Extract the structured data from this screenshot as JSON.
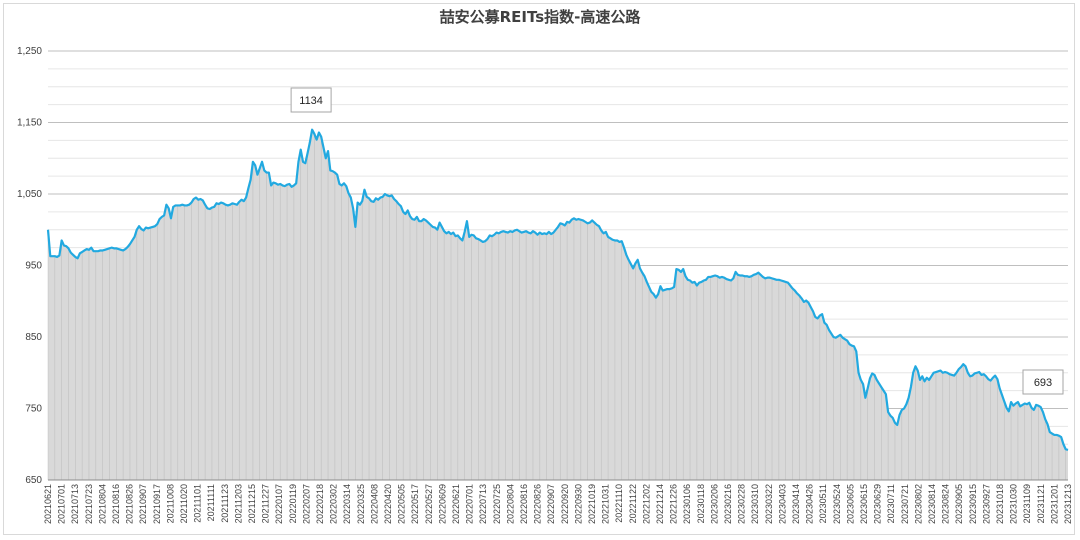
{
  "chart_data": {
    "type": "area",
    "title": "喆安公募REITs指数-高速公路",
    "xlabel": "",
    "ylabel": "",
    "ylim": [
      650,
      1250
    ],
    "yticks": [
      650,
      750,
      850,
      950,
      1050,
      1150,
      1250
    ],
    "ytick_labels": [
      "650",
      "750",
      "850",
      "950",
      "1,050",
      "1,150",
      "1,250"
    ],
    "xtick_labels": [
      "20210621",
      "20210701",
      "20210713",
      "20210723",
      "20210804",
      "20210816",
      "20210826",
      "20210907",
      "20210917",
      "20211008",
      "20211020",
      "20211101",
      "20211111",
      "20211123",
      "20211203",
      "20211215",
      "20211227",
      "20220107",
      "20220119",
      "20220207",
      "20220218",
      "20220302",
      "20220314",
      "20220325",
      "20220408",
      "20220420",
      "20220505",
      "20220517",
      "20220527",
      "20220609",
      "20220621",
      "20220701",
      "20220713",
      "20220725",
      "20220804",
      "20220816",
      "20220826",
      "20220907",
      "20220920",
      "20220930",
      "20221019",
      "20221031",
      "20221110",
      "20221122",
      "20221202",
      "20221214",
      "20221226",
      "20230106",
      "20230118",
      "20230206",
      "20230216",
      "20230228",
      "20230310",
      "20230322",
      "20230403",
      "20230414",
      "20230426",
      "20230511",
      "20230524",
      "20230605",
      "20230615",
      "20230629",
      "20230711",
      "20230721",
      "20230802",
      "20230814",
      "20230824",
      "20230905",
      "20230915",
      "20230927",
      "20231018",
      "20231030",
      "20231109",
      "20231121",
      "20231201",
      "20231213"
    ],
    "series": [
      {
        "values": [
          1000,
          963,
          963,
          963,
          962,
          964,
          985,
          978,
          977,
          974,
          968,
          965,
          962,
          960,
          967,
          969,
          971,
          973,
          972,
          975,
          970,
          970,
          970,
          971,
          971,
          972,
          973,
          974,
          975,
          974,
          974,
          973,
          972,
          971,
          973,
          976,
          980,
          985,
          990,
          1000,
          1005,
          1001,
          999,
          1003,
          1002,
          1003,
          1004,
          1005,
          1008,
          1015,
          1018,
          1020,
          1035,
          1030,
          1016,
          1032,
          1034,
          1034,
          1034,
          1035,
          1034,
          1034,
          1035,
          1038,
          1043,
          1045,
          1042,
          1043,
          1041,
          1035,
          1030,
          1029,
          1031,
          1032,
          1037,
          1036,
          1038,
          1037,
          1035,
          1034,
          1035,
          1037,
          1036,
          1035,
          1039,
          1042,
          1040,
          1045,
          1058,
          1070,
          1095,
          1090,
          1077,
          1086,
          1095,
          1083,
          1080,
          1080,
          1062,
          1066,
          1065,
          1063,
          1064,
          1062,
          1061,
          1063,
          1064,
          1060,
          1062,
          1065,
          1095,
          1112,
          1095,
          1093,
          1107,
          1122,
          1140,
          1134,
          1126,
          1136,
          1130,
          1115,
          1100,
          1110,
          1083,
          1082,
          1080,
          1077,
          1064,
          1062,
          1065,
          1061,
          1051,
          1045,
          1030,
          1004,
          1038,
          1035,
          1040,
          1056,
          1046,
          1044,
          1040,
          1039,
          1044,
          1042,
          1045,
          1046,
          1050,
          1048,
          1047,
          1048,
          1043,
          1040,
          1036,
          1033,
          1025,
          1022,
          1027,
          1019,
          1015,
          1014,
          1018,
          1012,
          1012,
          1015,
          1013,
          1010,
          1007,
          1004,
          1003,
          1000,
          1010,
          1004,
          998,
          995,
          997,
          994,
          996,
          991,
          992,
          988,
          985,
          997,
          1012,
          990,
          993,
          992,
          988,
          987,
          985,
          983,
          984,
          987,
          992,
          991,
          993,
          996,
          995,
          997,
          998,
          997,
          996,
          998,
          997,
          999,
          1000,
          998,
          996,
          997,
          998,
          996,
          995,
          998,
          996,
          993,
          996,
          994,
          995,
          994,
          997,
          994,
          996,
          1000,
          1004,
          1009,
          1008,
          1006,
          1011,
          1010,
          1014,
          1016,
          1014,
          1015,
          1014,
          1013,
          1011,
          1009,
          1010,
          1013,
          1010,
          1007,
          1005,
          999,
          995,
          997,
          990,
          988,
          986,
          985,
          985,
          983,
          984,
          975,
          965,
          958,
          952,
          946,
          953,
          958,
          946,
          940,
          935,
          927,
          920,
          913,
          910,
          905,
          910,
          921,
          915,
          916,
          917,
          917,
          918,
          920,
          945,
          944,
          941,
          945,
          935,
          930,
          929,
          926,
          927,
          922,
          926,
          927,
          929,
          930,
          934,
          934,
          935,
          936,
          935,
          933,
          934,
          933,
          931,
          930,
          929,
          932,
          941,
          937,
          936,
          936,
          935,
          935,
          934,
          935,
          937,
          938,
          940,
          937,
          934,
          932,
          933,
          933,
          932,
          931,
          930,
          930,
          929,
          928,
          927,
          926,
          922,
          918,
          915,
          911,
          908,
          904,
          899,
          901,
          898,
          892,
          886,
          878,
          876,
          880,
          882,
          870,
          867,
          860,
          855,
          850,
          849,
          851,
          853,
          849,
          847,
          845,
          840,
          838,
          837,
          830,
          800,
          790,
          784,
          765,
          778,
          792,
          799,
          797,
          790,
          785,
          780,
          775,
          770,
          745,
          740,
          737,
          730,
          727,
          741,
          748,
          750,
          756,
          765,
          780,
          800,
          809,
          803,
          790,
          795,
          788,
          793,
          790,
          795,
          800,
          801,
          802,
          803,
          800,
          801,
          800,
          798,
          797,
          796,
          800,
          805,
          808,
          812,
          809,
          800,
          795,
          796,
          799,
          800,
          801,
          797,
          798,
          795,
          791,
          789,
          793,
          796,
          791,
          778,
          769,
          760,
          751,
          746,
          759,
          754,
          757,
          759,
          753,
          755,
          757,
          756,
          758,
          751,
          748,
          755,
          754,
          752,
          745,
          735,
          728,
          717,
          715,
          713,
          713,
          712,
          710,
          700,
          693,
          692
        ]
      }
    ],
    "annotations": [
      {
        "label": "1134"
      },
      {
        "label": "693"
      }
    ],
    "grid": true,
    "legend": "none",
    "colors": {
      "line": "#22a9e0",
      "fill": "#d9d9d9",
      "grid": "#bfbfbf",
      "minor_grid": "#e6e6e6"
    }
  }
}
